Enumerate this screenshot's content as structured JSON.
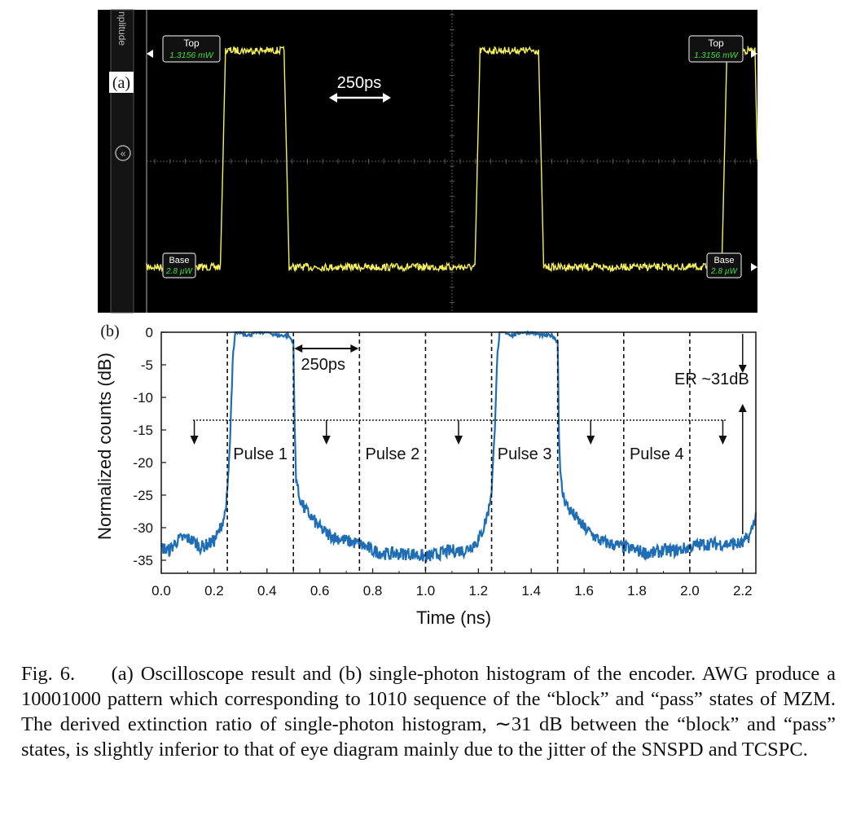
{
  "scope": {
    "panel_label": "(a)",
    "side_tab_text": "nplitude",
    "top_marker": {
      "label": "Top",
      "value": "1.3156 mW"
    },
    "base_marker": {
      "label": "Base",
      "value": "2.8 µW"
    },
    "period_annotation": "250ps",
    "colors": {
      "background": "#000000",
      "trace": "#f5f05a",
      "grid": "#5a5a5a",
      "marker_value": "#3cdc3c"
    },
    "trace_levels": {
      "top": 1,
      "base": 0
    },
    "high_intervals_ns": [
      [
        0.25,
        0.5
      ],
      [
        1.25,
        1.5
      ],
      [
        2.22,
        2.35
      ]
    ],
    "x_range_ns": [
      -0.05,
      2.35
    ]
  },
  "chart_data": {
    "type": "line",
    "panel_label": "(b)",
    "xlabel": "Time (ns)",
    "ylabel": "Normalized counts (dB)",
    "xlim": [
      0.0,
      2.25
    ],
    "ylim": [
      -37,
      0
    ],
    "xticks": [
      "0.0",
      "0.2",
      "0.4",
      "0.6",
      "0.8",
      "1.0",
      "1.2",
      "1.4",
      "1.6",
      "1.8",
      "2.0",
      "2.2"
    ],
    "yticks": [
      "0",
      "-5",
      "-10",
      "-15",
      "-20",
      "-25",
      "-30",
      "-35"
    ],
    "color": "#1f6db5",
    "series": [
      {
        "x": [
          0.0,
          0.03,
          0.06,
          0.09,
          0.12,
          0.15,
          0.18,
          0.2,
          0.22,
          0.24,
          0.25,
          0.26,
          0.27,
          0.28,
          0.3,
          0.33,
          0.36,
          0.4,
          0.44,
          0.48,
          0.5,
          0.505,
          0.51,
          0.52,
          0.54,
          0.57,
          0.6,
          0.63,
          0.66,
          0.7,
          0.75,
          0.8,
          0.85,
          0.9,
          0.95,
          1.0,
          1.05,
          1.1,
          1.15,
          1.2,
          1.22,
          1.24,
          1.25,
          1.26,
          1.27,
          1.28,
          1.3,
          1.33,
          1.36,
          1.4,
          1.44,
          1.48,
          1.5,
          1.505,
          1.51,
          1.52,
          1.54,
          1.57,
          1.6,
          1.63,
          1.66,
          1.7,
          1.75,
          1.8,
          1.85,
          1.9,
          1.95,
          2.0,
          2.05,
          2.1,
          2.15,
          2.2,
          2.23,
          2.25
        ],
        "y": [
          -33,
          -33.5,
          -32,
          -31.5,
          -32,
          -33,
          -32.5,
          -32,
          -30.5,
          -28,
          -25,
          -17,
          -5,
          0,
          0,
          -0.5,
          0,
          0,
          -0.5,
          -0.5,
          -1.5,
          -15,
          -22,
          -25,
          -27,
          -28.5,
          -30,
          -31,
          -31.5,
          -32,
          -32.5,
          -33.5,
          -34,
          -34,
          -34,
          -34.5,
          -34,
          -33.5,
          -33.5,
          -32,
          -30,
          -27,
          -24,
          -17,
          -5,
          0,
          0,
          -0.5,
          0,
          0,
          -0.5,
          -0.5,
          -1.5,
          -15,
          -22,
          -25,
          -27,
          -28.5,
          -30,
          -31,
          -32,
          -32.5,
          -33,
          -33.5,
          -34,
          -33.5,
          -33.5,
          -33,
          -32.5,
          -32.5,
          -32.5,
          -32.5,
          -31,
          -28
        ]
      }
    ],
    "dashed_x": [
      0.25,
      0.5,
      0.75,
      1.0,
      1.25,
      1.5,
      1.75,
      2.0
    ],
    "threshold_db": -13.5,
    "threshold_x": [
      0.12,
      2.14
    ],
    "down_arrows_x": [
      0.125,
      0.625,
      1.125,
      1.625,
      2.125
    ],
    "pulse_labels": [
      {
        "text": "Pulse 1",
        "x": 0.375
      },
      {
        "text": "Pulse 2",
        "x": 0.875
      },
      {
        "text": "Pulse 3",
        "x": 1.375
      },
      {
        "text": "Pulse 4",
        "x": 1.875
      }
    ],
    "period_annotation": {
      "text": "250ps",
      "x0": 0.5,
      "x1": 0.75,
      "y": -2.5
    },
    "er_annotation": {
      "text": "ER ~31dB",
      "x": 2.2,
      "y_top": 0,
      "y_bottom": -31
    }
  },
  "caption": {
    "lead": "Fig. 6.     ",
    "text": "(a) Oscilloscope result and (b) single-photon histogram of the encoder. AWG produce a 10001000 pattern which corresponding to 1010 sequence of the “block” and “pass” states of MZM. The derived extinction ratio of single-photon histogram, ∼31 dB between the “block” and “pass” states, is slightly inferior to that of eye diagram mainly due to the jitter of the SNSPD and TCSPC."
  }
}
